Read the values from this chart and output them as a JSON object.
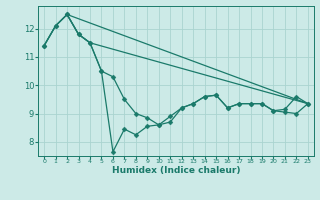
{
  "background_color": "#cceae7",
  "grid_color": "#aad4d0",
  "line_color": "#1a7a6a",
  "xlabel": "Humidex (Indice chaleur)",
  "xlim": [
    -0.5,
    23.5
  ],
  "ylim": [
    7.5,
    12.8
  ],
  "yticks": [
    8,
    9,
    10,
    11,
    12
  ],
  "xticks": [
    0,
    1,
    2,
    3,
    4,
    5,
    6,
    7,
    8,
    9,
    10,
    11,
    12,
    13,
    14,
    15,
    16,
    17,
    18,
    19,
    20,
    21,
    22,
    23
  ],
  "series": [
    {
      "x": [
        0,
        1,
        2,
        3,
        4,
        5,
        6,
        7,
        8,
        9,
        10,
        11,
        12,
        13,
        14,
        15,
        16,
        17,
        18,
        19,
        20,
        21,
        22,
        23
      ],
      "y": [
        11.4,
        12.1,
        12.5,
        11.8,
        11.5,
        10.5,
        10.3,
        9.5,
        9.0,
        8.85,
        8.6,
        8.7,
        9.2,
        9.35,
        9.6,
        9.65,
        9.2,
        9.35,
        9.35,
        9.35,
        9.1,
        9.15,
        9.6,
        9.35
      ],
      "has_markers": true
    },
    {
      "x": [
        0,
        1,
        2,
        3,
        4,
        5,
        6,
        7,
        8,
        9,
        10,
        11,
        12,
        13,
        14,
        15,
        16,
        17,
        18,
        19,
        20,
        21,
        22,
        23
      ],
      "y": [
        11.4,
        12.1,
        12.5,
        11.8,
        11.5,
        10.5,
        7.65,
        8.45,
        8.25,
        8.55,
        8.6,
        8.9,
        9.2,
        9.35,
        9.6,
        9.65,
        9.2,
        9.35,
        9.35,
        9.35,
        9.1,
        9.05,
        9.0,
        9.35
      ],
      "has_markers": true
    },
    {
      "x": [
        0,
        1,
        2,
        3,
        4,
        23
      ],
      "y": [
        11.4,
        12.1,
        12.5,
        11.8,
        11.5,
        9.35
      ],
      "has_markers": false
    },
    {
      "x": [
        2,
        23
      ],
      "y": [
        12.5,
        9.35
      ],
      "has_markers": false
    }
  ],
  "markersize": 2.5,
  "linewidth": 0.9
}
